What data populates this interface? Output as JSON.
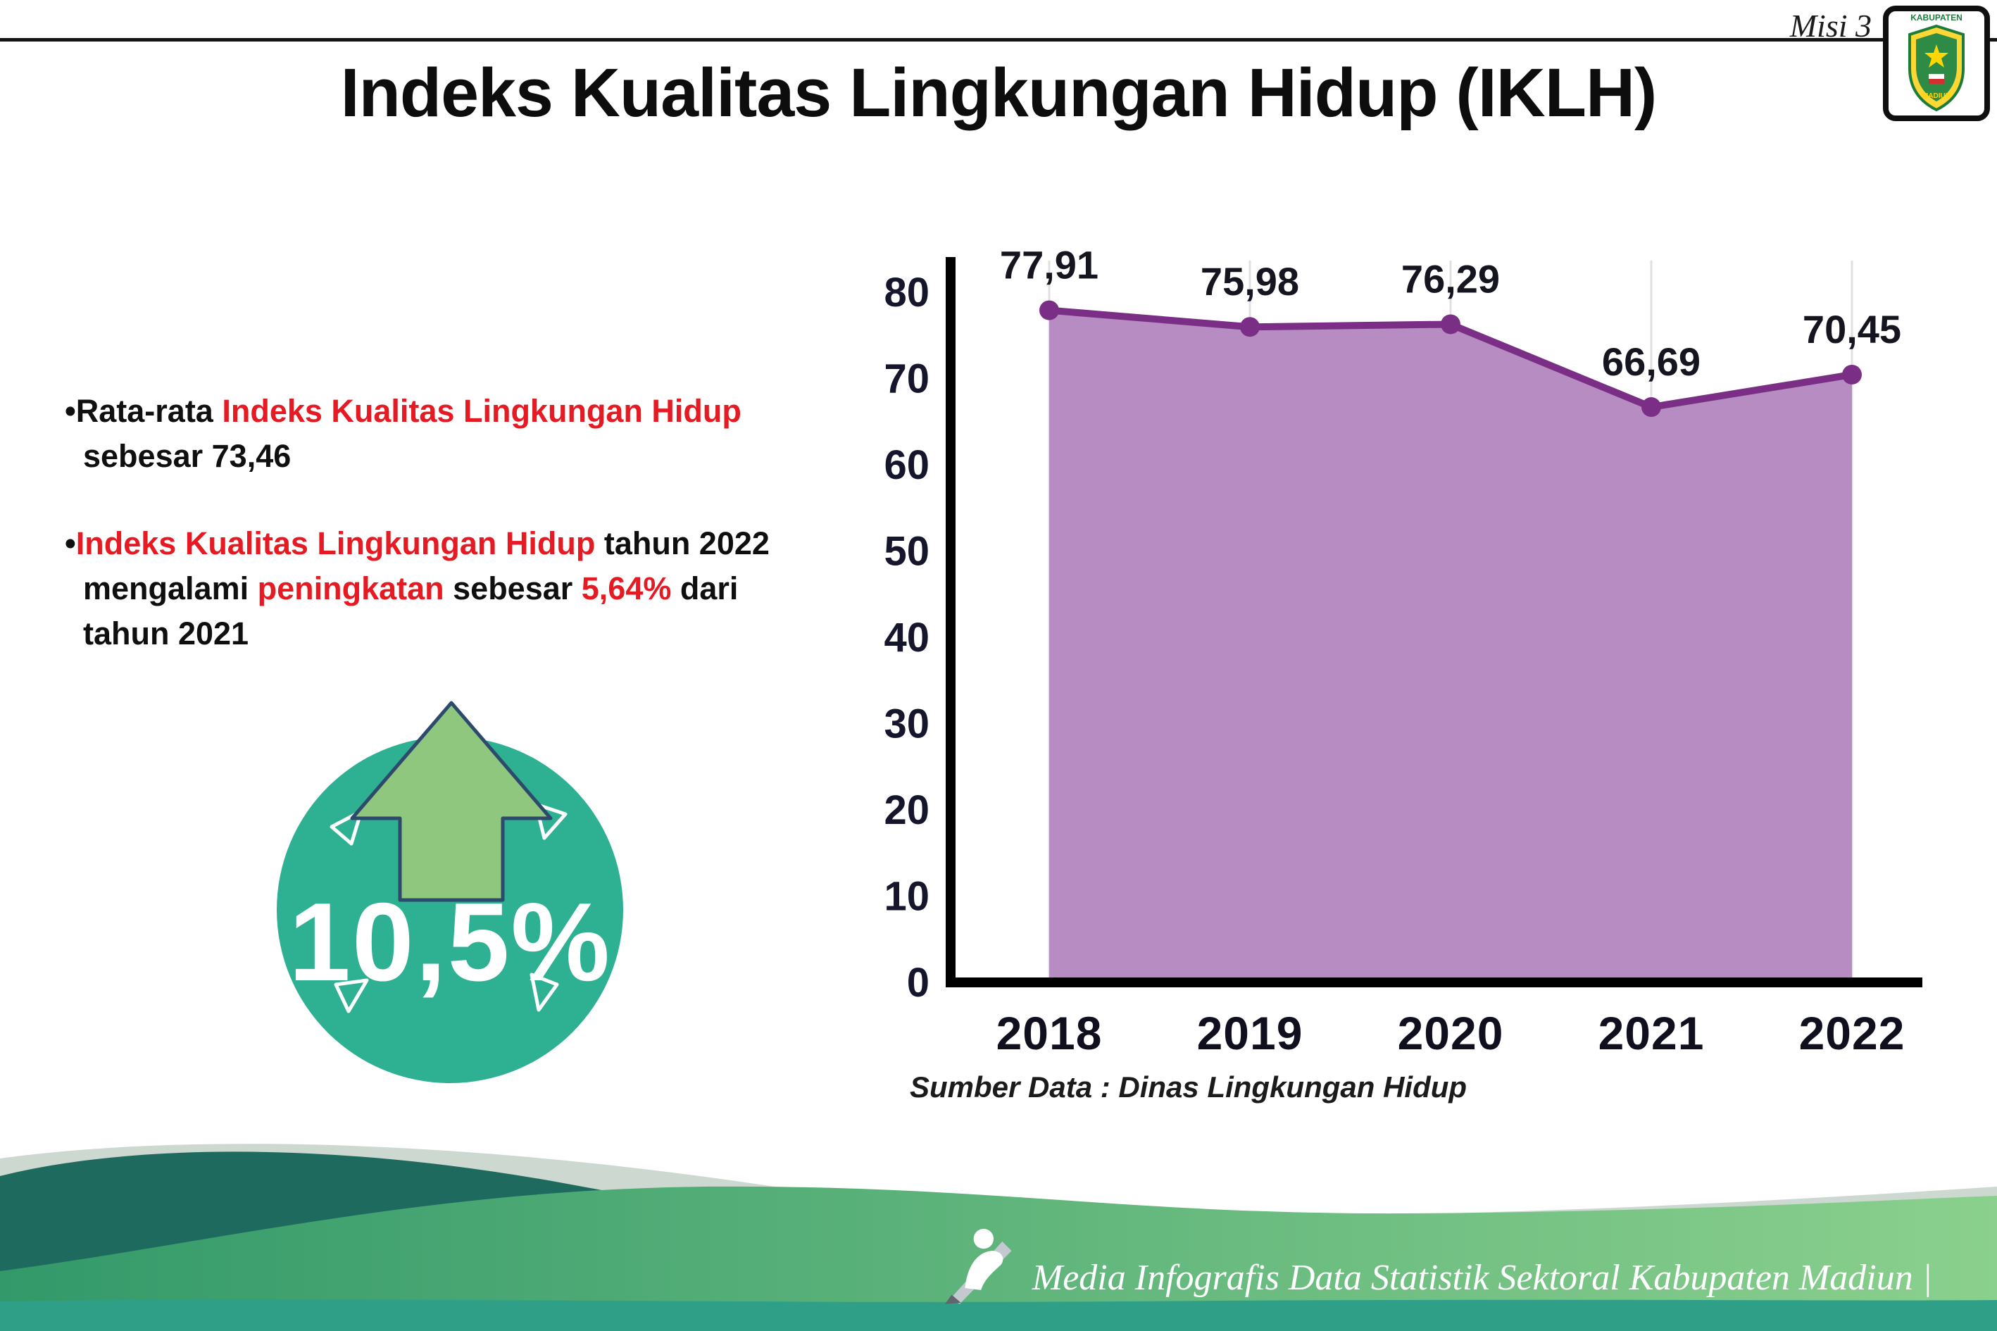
{
  "header": {
    "misi": "Misi 3",
    "title": "Indeks Kualitas Lingkungan Hidup (IKLH)",
    "logo_top": "KABUPATEN",
    "logo_bottom": "MADIUN"
  },
  "bullets": {
    "b1": {
      "s1": "•Rata-rata ",
      "s2": "Indeks Kualitas Lingkungan Hidup",
      "l2": "sebesar 73,46"
    },
    "b2": {
      "s1": "•",
      "s2": "Indeks Kualitas Lingkungan Hidup",
      "s3": " tahun 2022",
      "l2a": "mengalami ",
      "l2b": "peningkatan",
      "l2c": " sebesar ",
      "l2d": "5,64%",
      "l2e": " dari",
      "l3": "tahun 2021"
    }
  },
  "badge": {
    "value": "10,5%"
  },
  "chart_data": {
    "type": "area",
    "categories": [
      "2018",
      "2019",
      "2020",
      "2021",
      "2022"
    ],
    "values": [
      77.91,
      75.98,
      76.29,
      66.69,
      70.45
    ],
    "value_labels": [
      "77,91",
      "75,98",
      "76,29",
      "66,69",
      "70,45"
    ],
    "title": "",
    "xlabel": "",
    "ylabel": "",
    "ylim": [
      0,
      80
    ],
    "ytick_step": 10,
    "grid": "vertical-light",
    "legend": "none",
    "line_color": "#7b2e86",
    "fill_color": "#b78cc3",
    "marker": "circle"
  },
  "source": "Sumber Data : Dinas Lingkungan Hidup",
  "footer": {
    "text": "Media Infografis Data Statistik Sektoral Kabupaten Madiun |"
  },
  "colors": {
    "accent_red": "#e51a22",
    "badge_teal": "#2eb092",
    "arrow_green": "#8ec77d",
    "area_fill": "#b78cc3",
    "line_purple": "#7b2e86",
    "footer_dark_teal": "#1f6a5e",
    "footer_green_dark": "#33996a",
    "footer_green_light": "#8bd08d",
    "footer_strip": "#2f9f87"
  }
}
